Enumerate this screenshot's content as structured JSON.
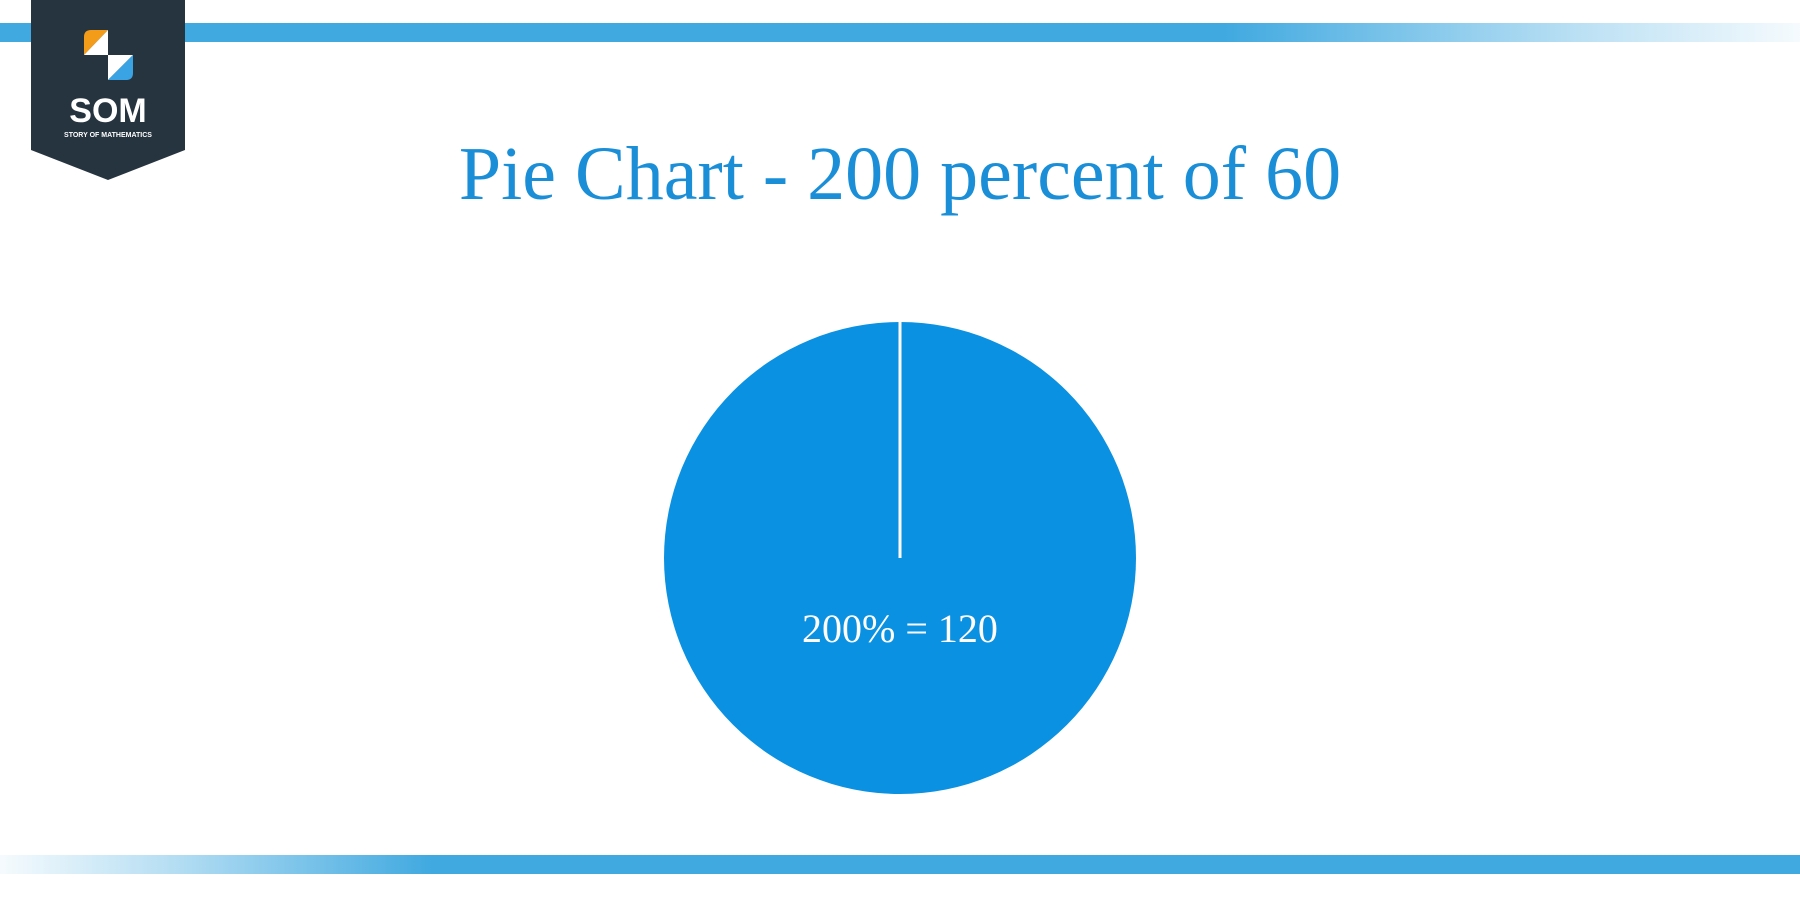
{
  "logo": {
    "abbreviation": "SOM",
    "full_name": "STORY OF MATHEMATICS",
    "colors": {
      "background": "#263440",
      "orange": "#f39c1a",
      "blue": "#3aa3e3",
      "white": "#ffffff"
    }
  },
  "colors": {
    "accent_bar": "#40a9e0",
    "title": "#1a8fd8",
    "slice": "#0a91e2",
    "separator": "#ffffff"
  },
  "chart_data": {
    "type": "pie",
    "title": "Pie Chart - 200 percent of 60",
    "slices": [
      {
        "label": "200% = 120",
        "value": 120,
        "percent": 200
      }
    ]
  }
}
